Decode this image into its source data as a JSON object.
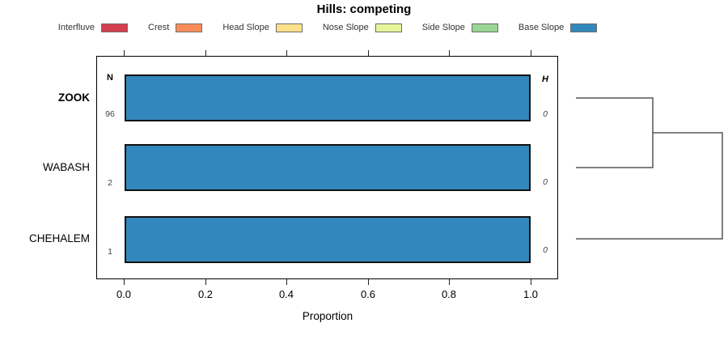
{
  "title": "Hills: competing",
  "legend": {
    "items": [
      {
        "label": "Interfluve",
        "color": "#D53E4F"
      },
      {
        "label": "Crest",
        "color": "#FC8D59"
      },
      {
        "label": "Head Slope",
        "color": "#FEE08B"
      },
      {
        "label": "Nose Slope",
        "color": "#E6F598"
      },
      {
        "label": "Side Slope",
        "color": "#99D594"
      },
      {
        "label": "Base Slope",
        "color": "#3288BD"
      }
    ]
  },
  "columns": {
    "n_header": "N",
    "h_header": "H"
  },
  "rows": [
    {
      "label": "ZOOK",
      "n": "96",
      "h": "0"
    },
    {
      "label": "WABASH",
      "n": "2",
      "h": "0"
    },
    {
      "label": "CHEHALEM",
      "n": "1",
      "h": "0"
    }
  ],
  "axis": {
    "xlabel": "Proportion",
    "xticks": [
      "0.0",
      "0.2",
      "0.4",
      "0.6",
      "0.8",
      "1.0"
    ]
  },
  "chart_data": {
    "type": "bar",
    "orientation": "horizontal",
    "stacked": true,
    "title": "Hills: competing",
    "xlabel": "Proportion",
    "xlim": [
      0,
      1
    ],
    "xticks": [
      0.0,
      0.2,
      0.4,
      0.6,
      0.8,
      1.0
    ],
    "grid": false,
    "legend_position": "top",
    "categories": [
      "ZOOK",
      "WABASH",
      "CHEHALEM"
    ],
    "series": [
      {
        "name": "Interfluve",
        "color": "#D53E4F",
        "values": [
          0,
          0,
          0
        ]
      },
      {
        "name": "Crest",
        "color": "#FC8D59",
        "values": [
          0,
          0,
          0
        ]
      },
      {
        "name": "Head Slope",
        "color": "#FEE08B",
        "values": [
          0,
          0,
          0
        ]
      },
      {
        "name": "Nose Slope",
        "color": "#E6F598",
        "values": [
          0,
          0,
          0
        ]
      },
      {
        "name": "Side Slope",
        "color": "#99D594",
        "values": [
          0,
          0,
          0
        ]
      },
      {
        "name": "Base Slope",
        "color": "#3288BD",
        "values": [
          1.0,
          1.0,
          1.0
        ]
      }
    ],
    "annotations": {
      "N": [
        96,
        2,
        1
      ],
      "H": [
        0,
        0,
        0
      ]
    },
    "dendrogram": {
      "position": "right",
      "merges": [
        [
          "ZOOK",
          "WABASH"
        ],
        [
          "ZOOK+WABASH",
          "CHEHALEM"
        ]
      ],
      "heights": [
        0,
        0
      ]
    }
  }
}
